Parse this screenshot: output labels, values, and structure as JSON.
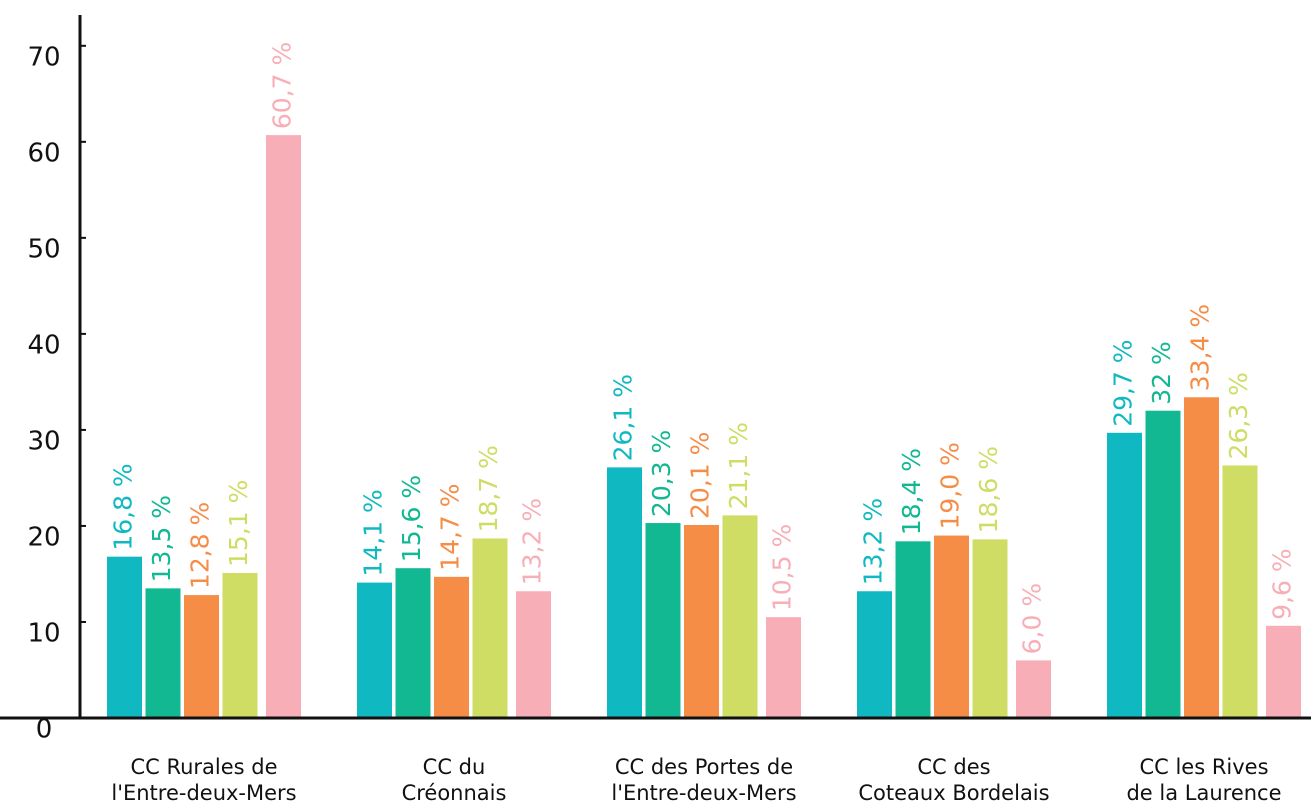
{
  "chart_data": {
    "type": "bar",
    "categories": [
      [
        "CC Rurales de",
        "l'Entre-deux-Mers"
      ],
      [
        "CC du",
        "Créonnais"
      ],
      [
        "CC des Portes de",
        "l'Entre-deux-Mers"
      ],
      [
        "CC des",
        "Coteaux Bordelais"
      ],
      [
        "CC les Rives",
        "de la Laurence"
      ]
    ],
    "series": [
      {
        "color": "#10b9c1",
        "values": [
          16.8,
          14.1,
          26.1,
          13.2,
          29.7
        ],
        "value_labels": [
          "16,8 %",
          "14,1 %",
          "26,1 %",
          "13,2 %",
          "29,7 %"
        ]
      },
      {
        "color": "#12b892",
        "values": [
          13.5,
          15.6,
          20.3,
          18.4,
          32
        ],
        "value_labels": [
          "13,5 %",
          "15,6 %",
          "20,3 %",
          "18,4 %",
          "32 %"
        ]
      },
      {
        "color": "#f58d47",
        "values": [
          12.8,
          14.7,
          20.1,
          19.0,
          33.4
        ],
        "value_labels": [
          "12,8 %",
          "14,7 %",
          "20,1 %",
          "19,0 %",
          "33,4 %"
        ]
      },
      {
        "color": "#cfdd64",
        "values": [
          15.1,
          18.7,
          21.1,
          18.6,
          26.3
        ],
        "value_labels": [
          "15,1 %",
          "18,7 %",
          "21,1 %",
          "18,6 %",
          "26,3 %"
        ]
      },
      {
        "color": "#f7aeb6",
        "values": [
          60.7,
          13.2,
          10.5,
          6.0,
          9.6
        ],
        "value_labels": [
          "60,7 %",
          "13,2 %",
          "10,5 %",
          "6,0 %",
          "9,6 %"
        ]
      }
    ],
    "ylim": [
      0,
      73
    ],
    "yticks": [
      0,
      10,
      20,
      30,
      40,
      50,
      60,
      70
    ],
    "grid": false
  }
}
